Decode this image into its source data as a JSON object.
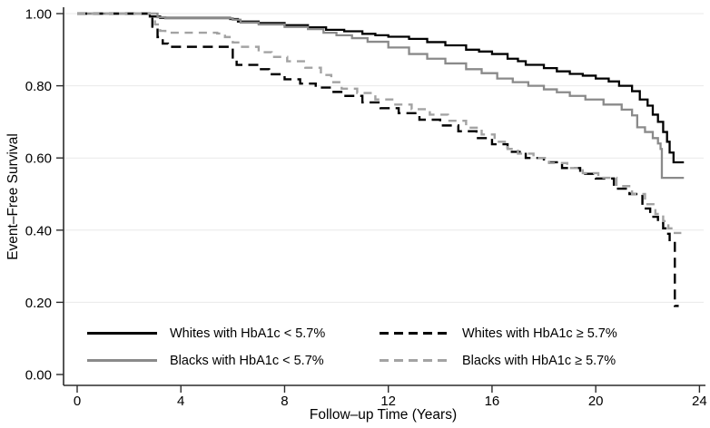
{
  "chart_data": {
    "type": "line",
    "subtype": "kaplan-meier-step",
    "title": "",
    "xlabel": "Follow–up Time (Years)",
    "ylabel": "Event–Free Survival",
    "xlim": [
      0,
      24
    ],
    "ylim": [
      0.0,
      1.0
    ],
    "xticks": [
      0,
      4,
      8,
      12,
      16,
      20,
      24
    ],
    "yticks": [
      {
        "v": 0.0,
        "label": "0.00"
      },
      {
        "v": 0.2,
        "label": "0.20"
      },
      {
        "v": 0.4,
        "label": "0.40"
      },
      {
        "v": 0.6,
        "label": "0.60"
      },
      {
        "v": 0.8,
        "label": "0.80"
      },
      {
        "v": 1.0,
        "label": "1.00"
      }
    ],
    "grid": "horizontal",
    "grid_color": "#e9e9e9",
    "axis_color": "#2b2b2b",
    "legend_position": "bottom-inside",
    "legend_order": [
      0,
      2,
      1,
      3
    ],
    "series": [
      {
        "name": "Whites with HbA1c < 5.7%",
        "color": "#000000",
        "dash": "solid",
        "points": [
          [
            0,
            1
          ],
          [
            2.6,
            1
          ],
          [
            2.8,
            0.992
          ],
          [
            3.2,
            0.988
          ],
          [
            5.9,
            0.985
          ],
          [
            6.2,
            0.978
          ],
          [
            7,
            0.974
          ],
          [
            8,
            0.968
          ],
          [
            8.9,
            0.962
          ],
          [
            9.6,
            0.955
          ],
          [
            10.3,
            0.951
          ],
          [
            11,
            0.944
          ],
          [
            11.5,
            0.94
          ],
          [
            12,
            0.936
          ],
          [
            12.8,
            0.93
          ],
          [
            13.5,
            0.921
          ],
          [
            14.2,
            0.912
          ],
          [
            15,
            0.9
          ],
          [
            15.5,
            0.895
          ],
          [
            16,
            0.888
          ],
          [
            16.6,
            0.875
          ],
          [
            17,
            0.868
          ],
          [
            17.3,
            0.858
          ],
          [
            18,
            0.849
          ],
          [
            18.5,
            0.84
          ],
          [
            19,
            0.833
          ],
          [
            19.5,
            0.828
          ],
          [
            20,
            0.82
          ],
          [
            20.5,
            0.812
          ],
          [
            20.9,
            0.8
          ],
          [
            21.4,
            0.785
          ],
          [
            21.7,
            0.762
          ],
          [
            22,
            0.745
          ],
          [
            22.2,
            0.72
          ],
          [
            22.4,
            0.7
          ],
          [
            22.6,
            0.672
          ],
          [
            22.75,
            0.645
          ],
          [
            22.85,
            0.615
          ],
          [
            23,
            0.588
          ],
          [
            23.4,
            0.588
          ]
        ]
      },
      {
        "name": "Blacks with HbA1c < 5.7%",
        "color": "#8a8a8a",
        "dash": "solid",
        "points": [
          [
            0,
            1
          ],
          [
            2.7,
            1
          ],
          [
            3.1,
            0.99
          ],
          [
            3.4,
            0.987
          ],
          [
            6,
            0.983
          ],
          [
            6.3,
            0.975
          ],
          [
            7,
            0.97
          ],
          [
            8,
            0.963
          ],
          [
            8.9,
            0.957
          ],
          [
            9.5,
            0.947
          ],
          [
            10,
            0.94
          ],
          [
            10.6,
            0.932
          ],
          [
            11.2,
            0.922
          ],
          [
            12,
            0.906
          ],
          [
            12.8,
            0.888
          ],
          [
            13.5,
            0.875
          ],
          [
            14.2,
            0.862
          ],
          [
            15,
            0.846
          ],
          [
            15.6,
            0.835
          ],
          [
            16.2,
            0.82
          ],
          [
            16.8,
            0.81
          ],
          [
            17.4,
            0.8
          ],
          [
            18,
            0.79
          ],
          [
            18.5,
            0.782
          ],
          [
            19,
            0.772
          ],
          [
            19.6,
            0.762
          ],
          [
            20.3,
            0.748
          ],
          [
            21,
            0.734
          ],
          [
            21.4,
            0.718
          ],
          [
            21.6,
            0.685
          ],
          [
            21.9,
            0.672
          ],
          [
            22.2,
            0.655
          ],
          [
            22.4,
            0.64
          ],
          [
            22.5,
            0.625
          ],
          [
            22.55,
            0.545
          ],
          [
            23.4,
            0.545
          ]
        ]
      },
      {
        "name": "Whites with HbA1c ≥ 5.7%",
        "color": "#000000",
        "dash": "dashed",
        "points": [
          [
            0,
            1
          ],
          [
            2.75,
            1
          ],
          [
            2.9,
            0.96
          ],
          [
            3.1,
            0.935
          ],
          [
            3.3,
            0.917
          ],
          [
            3.5,
            0.908
          ],
          [
            5.8,
            0.908
          ],
          [
            6,
            0.87
          ],
          [
            6.15,
            0.858
          ],
          [
            7,
            0.846
          ],
          [
            7.4,
            0.832
          ],
          [
            8,
            0.818
          ],
          [
            8.6,
            0.806
          ],
          [
            9.2,
            0.795
          ],
          [
            9.8,
            0.783
          ],
          [
            10.3,
            0.772
          ],
          [
            11,
            0.754
          ],
          [
            11.7,
            0.738
          ],
          [
            12.4,
            0.724
          ],
          [
            13.2,
            0.706
          ],
          [
            14,
            0.69
          ],
          [
            14.7,
            0.674
          ],
          [
            15.4,
            0.655
          ],
          [
            16,
            0.638
          ],
          [
            16.6,
            0.617
          ],
          [
            17.3,
            0.6
          ],
          [
            18,
            0.588
          ],
          [
            18.7,
            0.572
          ],
          [
            19.4,
            0.556
          ],
          [
            20,
            0.543
          ],
          [
            20.7,
            0.515
          ],
          [
            21.3,
            0.5
          ],
          [
            21.8,
            0.46
          ],
          [
            22.1,
            0.437
          ],
          [
            22.4,
            0.42
          ],
          [
            22.6,
            0.405
          ],
          [
            22.75,
            0.39
          ],
          [
            22.85,
            0.368
          ],
          [
            23.05,
            0.368
          ],
          [
            23.05,
            0.19
          ],
          [
            23.2,
            0.19
          ]
        ]
      },
      {
        "name": "Blacks with HbA1c ≥ 5.7%",
        "color": "#a3a3a3",
        "dash": "dashed",
        "points": [
          [
            0,
            1
          ],
          [
            2.8,
            1
          ],
          [
            3,
            0.97
          ],
          [
            3.2,
            0.952
          ],
          [
            3.4,
            0.947
          ],
          [
            5.4,
            0.945
          ],
          [
            5.7,
            0.935
          ],
          [
            6,
            0.92
          ],
          [
            6.3,
            0.908
          ],
          [
            7,
            0.893
          ],
          [
            7.5,
            0.88
          ],
          [
            8.1,
            0.868
          ],
          [
            8.8,
            0.85
          ],
          [
            9.4,
            0.83
          ],
          [
            9.8,
            0.81
          ],
          [
            10.2,
            0.792
          ],
          [
            10.8,
            0.78
          ],
          [
            11.5,
            0.762
          ],
          [
            12.2,
            0.748
          ],
          [
            12.9,
            0.735
          ],
          [
            13.6,
            0.72
          ],
          [
            14.3,
            0.703
          ],
          [
            15,
            0.684
          ],
          [
            15.6,
            0.665
          ],
          [
            16.1,
            0.645
          ],
          [
            16.6,
            0.625
          ],
          [
            17,
            0.612
          ],
          [
            17.6,
            0.6
          ],
          [
            18.2,
            0.586
          ],
          [
            18.9,
            0.572
          ],
          [
            19.5,
            0.558
          ],
          [
            20.1,
            0.545
          ],
          [
            20.8,
            0.522
          ],
          [
            21.4,
            0.5
          ],
          [
            21.9,
            0.472
          ],
          [
            22.3,
            0.445
          ],
          [
            22.6,
            0.425
          ],
          [
            22.8,
            0.405
          ],
          [
            23,
            0.392
          ],
          [
            23.3,
            0.392
          ]
        ]
      }
    ]
  }
}
